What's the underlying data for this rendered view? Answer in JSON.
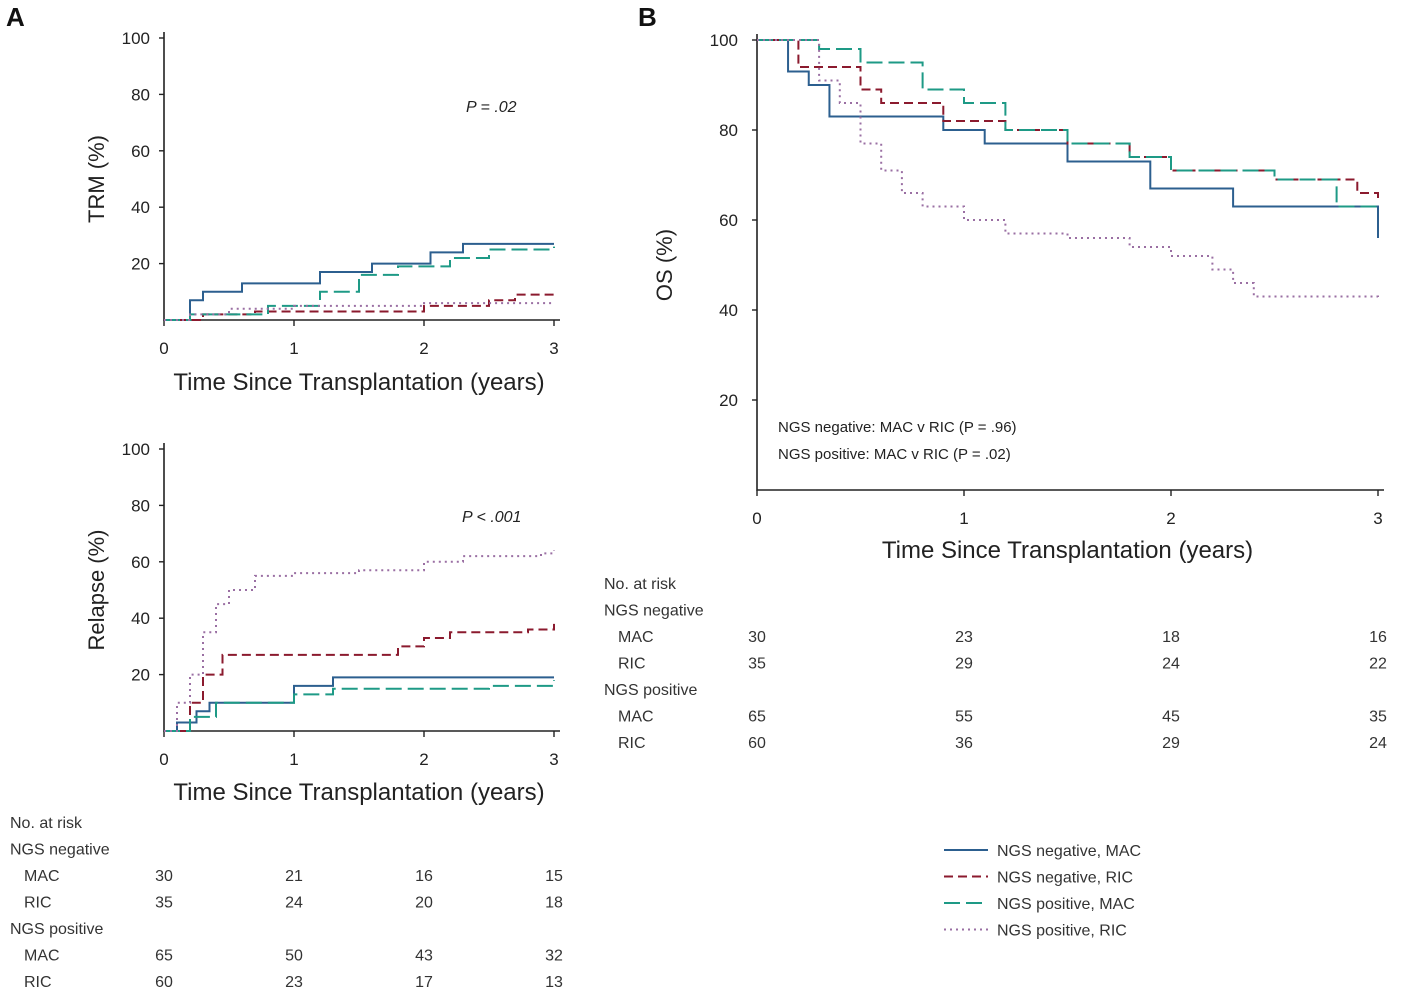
{
  "panel_labels": [
    "A",
    "B"
  ],
  "colors": {
    "ngs_neg_mac": "#2c5f8f",
    "ngs_neg_ric": "#8b1a2e",
    "ngs_pos_mac": "#1e9a86",
    "ngs_pos_ric": "#9a6fa3"
  },
  "chart_data": [
    {
      "id": "trm",
      "panel": "A",
      "type": "line",
      "title": "",
      "xlabel": "Time Since Transplantation (years)",
      "ylabel": "TRM (%)",
      "xlim": [
        0,
        3
      ],
      "ylim": [
        0,
        100
      ],
      "xticks": [
        "0",
        "1",
        "2",
        "3"
      ],
      "yticks": [
        "20",
        "40",
        "60",
        "80",
        "100"
      ],
      "annotation": "P = .02",
      "series": [
        {
          "name": "NGS negative, MAC",
          "style": "solid",
          "x": [
            0,
            0.2,
            0.3,
            0.6,
            1.2,
            1.6,
            2.05,
            2.3,
            3.0
          ],
          "y": [
            0,
            7,
            10,
            13,
            17,
            20,
            24,
            27,
            27
          ]
        },
        {
          "name": "NGS negative, RIC",
          "style": "dashed",
          "x": [
            0,
            0.3,
            0.7,
            1.0,
            2.0,
            2.5,
            2.7,
            3.0
          ],
          "y": [
            0,
            2,
            3,
            3,
            5,
            7,
            9,
            9
          ]
        },
        {
          "name": "NGS positive, MAC",
          "style": "longdash",
          "x": [
            0,
            0.2,
            0.8,
            1.2,
            1.5,
            1.8,
            2.2,
            2.5,
            3.0
          ],
          "y": [
            0,
            2,
            5,
            10,
            16,
            19,
            22,
            25,
            26
          ]
        },
        {
          "name": "NGS positive, RIC",
          "style": "dotted",
          "x": [
            0,
            0.2,
            0.5,
            1.0,
            2.0,
            3.0
          ],
          "y": [
            0,
            2,
            4,
            5,
            6,
            6
          ]
        }
      ]
    },
    {
      "id": "relapse",
      "panel": "A",
      "type": "line",
      "title": "",
      "xlabel": "Time Since Transplantation (years)",
      "ylabel": "Relapse (%)",
      "xlim": [
        0,
        3
      ],
      "ylim": [
        0,
        100
      ],
      "xticks": [
        "0",
        "1",
        "2",
        "3"
      ],
      "yticks": [
        "20",
        "40",
        "60",
        "80",
        "100"
      ],
      "annotation": "P < .001",
      "series": [
        {
          "name": "NGS negative, MAC",
          "style": "solid",
          "x": [
            0,
            0.1,
            0.25,
            0.35,
            0.7,
            1.0,
            1.3,
            3.0
          ],
          "y": [
            0,
            3,
            7,
            10,
            10,
            16,
            19,
            19
          ]
        },
        {
          "name": "NGS negative, RIC",
          "style": "dashed",
          "x": [
            0,
            0.2,
            0.3,
            0.45,
            1.0,
            1.8,
            2.0,
            2.2,
            2.8,
            3.0
          ],
          "y": [
            0,
            10,
            20,
            27,
            27,
            30,
            33,
            35,
            36,
            38
          ]
        },
        {
          "name": "NGS positive, MAC",
          "style": "longdash",
          "x": [
            0,
            0.2,
            0.4,
            1.0,
            1.3,
            2.5,
            3.0
          ],
          "y": [
            0,
            5,
            10,
            13,
            15,
            16,
            18
          ]
        },
        {
          "name": "NGS positive, RIC",
          "style": "dotted",
          "x": [
            0,
            0.1,
            0.2,
            0.3,
            0.4,
            0.5,
            0.7,
            1.0,
            1.5,
            1.9,
            2.0,
            2.3,
            2.9,
            3.0
          ],
          "y": [
            0,
            10,
            20,
            35,
            45,
            50,
            55,
            56,
            57,
            57,
            60,
            62,
            63,
            64
          ]
        }
      ]
    },
    {
      "id": "os",
      "panel": "B",
      "type": "line",
      "title": "",
      "xlabel": "Time Since Transplantation (years)",
      "ylabel": "OS (%)",
      "xlim": [
        0,
        3
      ],
      "ylim": [
        0,
        100
      ],
      "xticks": [
        "0",
        "1",
        "2",
        "3"
      ],
      "yticks": [
        "20",
        "40",
        "60",
        "80",
        "100"
      ],
      "annotations": [
        "NGS negative: MAC v RIC (P = .96)",
        "NGS positive: MAC v RIC (P = .02)"
      ],
      "series": [
        {
          "name": "NGS negative, MAC",
          "style": "solid",
          "x": [
            0,
            0.15,
            0.25,
            0.35,
            0.6,
            0.9,
            1.1,
            1.5,
            1.9,
            2.3,
            3.0
          ],
          "y": [
            100,
            93,
            90,
            83,
            83,
            80,
            77,
            73,
            67,
            63,
            56
          ]
        },
        {
          "name": "NGS negative, RIC",
          "style": "dashed",
          "x": [
            0,
            0.2,
            0.5,
            0.6,
            0.9,
            1.2,
            1.5,
            1.8,
            2.0,
            2.5,
            2.9,
            3.0
          ],
          "y": [
            100,
            94,
            89,
            86,
            82,
            80,
            77,
            74,
            71,
            69,
            66,
            64
          ]
        },
        {
          "name": "NGS positive, MAC",
          "style": "longdash",
          "x": [
            0,
            0.3,
            0.5,
            0.8,
            1.0,
            1.2,
            1.5,
            1.8,
            2.0,
            2.5,
            2.8,
            3.0
          ],
          "y": [
            100,
            98,
            95,
            89,
            86,
            80,
            77,
            74,
            71,
            69,
            63,
            62
          ]
        },
        {
          "name": "NGS positive, RIC",
          "style": "dotted",
          "x": [
            0,
            0.3,
            0.4,
            0.5,
            0.6,
            0.7,
            0.8,
            1.0,
            1.2,
            1.5,
            1.8,
            2.0,
            2.2,
            2.3,
            2.4,
            3.0
          ],
          "y": [
            100,
            91,
            86,
            77,
            71,
            66,
            63,
            60,
            57,
            56,
            54,
            52,
            49,
            46,
            43,
            42
          ]
        }
      ]
    }
  ],
  "risk_table_a": {
    "title": "No. at risk",
    "groups": [
      {
        "label": "NGS negative",
        "rows": [
          {
            "label": "MAC",
            "values": [
              "30",
              "21",
              "16",
              "15"
            ]
          },
          {
            "label": "RIC",
            "values": [
              "35",
              "24",
              "20",
              "18"
            ]
          }
        ]
      },
      {
        "label": "NGS positive",
        "rows": [
          {
            "label": "MAC",
            "values": [
              "65",
              "50",
              "43",
              "32"
            ]
          },
          {
            "label": "RIC",
            "values": [
              "60",
              "23",
              "17",
              "13"
            ]
          }
        ]
      }
    ]
  },
  "risk_table_b": {
    "title": "No. at risk",
    "groups": [
      {
        "label": "NGS negative",
        "rows": [
          {
            "label": "MAC",
            "values": [
              "30",
              "23",
              "18",
              "16"
            ]
          },
          {
            "label": "RIC",
            "values": [
              "35",
              "29",
              "24",
              "22"
            ]
          }
        ]
      },
      {
        "label": "NGS positive",
        "rows": [
          {
            "label": "MAC",
            "values": [
              "65",
              "55",
              "45",
              "35"
            ]
          },
          {
            "label": "RIC",
            "values": [
              "60",
              "36",
              "29",
              "24"
            ]
          }
        ]
      }
    ]
  },
  "legend": [
    {
      "label": "NGS negative, MAC",
      "style": "solid"
    },
    {
      "label": "NGS negative, RIC",
      "style": "dashed"
    },
    {
      "label": "NGS positive, MAC",
      "style": "longdash"
    },
    {
      "label": "NGS positive, RIC",
      "style": "dotted"
    }
  ]
}
